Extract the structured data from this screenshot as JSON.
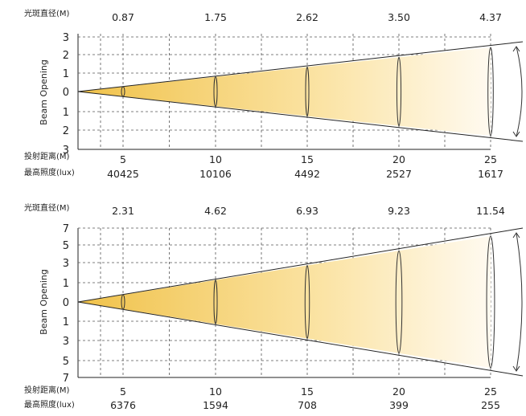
{
  "labels": {
    "spot_diameter": "光斑直径(M)",
    "throw_distance": "投射距离(M)",
    "max_illuminance": "最高照度(lux)"
  },
  "colors": {
    "beam_dark": "#f0c24a",
    "beam_light": "#fffaf0",
    "grid": "#555555",
    "axis": "#222222"
  },
  "chart_data": [
    {
      "type": "area",
      "title": "",
      "ylabel": "Beam Opening",
      "y_ticks": [
        "3",
        "2",
        "1",
        "0",
        "1",
        "2",
        "3"
      ],
      "ylim": [
        -3,
        3
      ],
      "distances": [
        "5",
        "10",
        "15",
        "20",
        "25"
      ],
      "spot_diameters": [
        "0.87",
        "1.75",
        "2.62",
        "3.50",
        "4.37"
      ],
      "illuminance": [
        "40425",
        "10106",
        "4492",
        "2527",
        "1617"
      ],
      "x": [
        5,
        10,
        15,
        20,
        25
      ],
      "diameter_values": [
        0.87,
        1.75,
        2.62,
        3.5,
        4.37
      ],
      "grid": true
    },
    {
      "type": "area",
      "title": "",
      "ylabel": "Beam Opening",
      "y_ticks": [
        "7",
        "5",
        "3",
        "1",
        "0",
        "1",
        "3",
        "5",
        "7"
      ],
      "ylim": [
        -7,
        7
      ],
      "distances": [
        "5",
        "10",
        "15",
        "20",
        "25"
      ],
      "spot_diameters": [
        "2.31",
        "4.62",
        "6.93",
        "9.23",
        "11.54"
      ],
      "illuminance": [
        "6376",
        "1594",
        "708",
        "399",
        "255"
      ],
      "x": [
        5,
        10,
        15,
        20,
        25
      ],
      "diameter_values": [
        2.31,
        4.62,
        6.93,
        9.23,
        11.54
      ],
      "grid": true
    }
  ]
}
